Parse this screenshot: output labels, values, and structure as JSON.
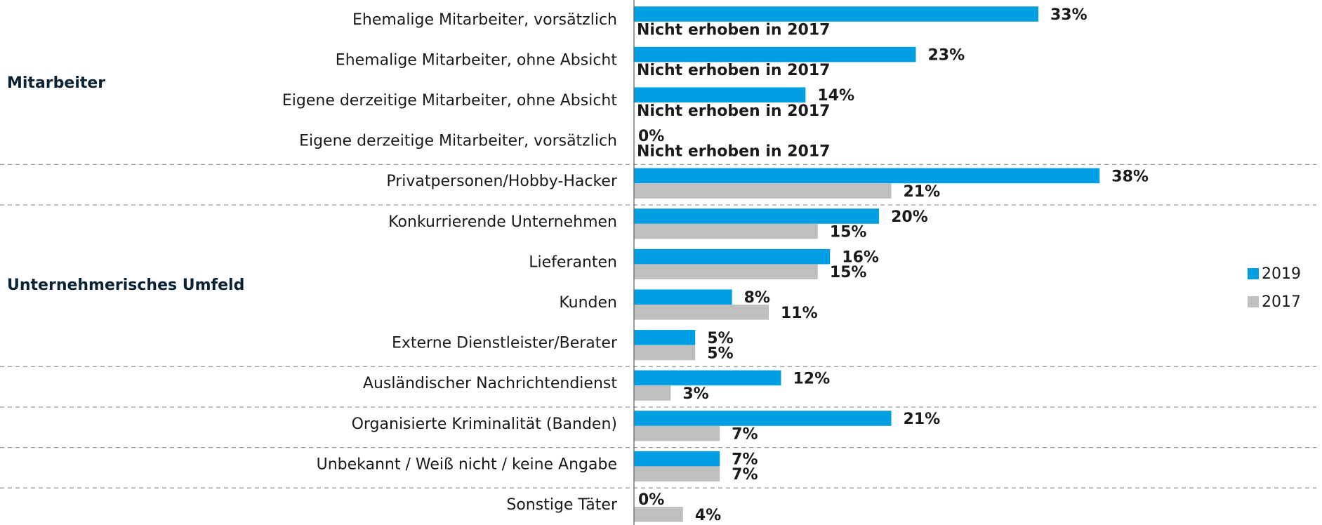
{
  "chart_data": {
    "type": "hbar",
    "categories": [
      "Ehemalige Mitarbeiter, vorsätzlich",
      "Ehemalige Mitarbeiter, ohne Absicht",
      "Eigene derzeitige Mitarbeiter, ohne Absicht",
      "Eigene derzeitige Mitarbeiter, vorsätzlich",
      "Privatpersonen/Hobby-Hacker",
      "Konkurrierende Unternehmen",
      "Lieferanten",
      "Kunden",
      "Externe Dienstleister/Berater",
      "Ausländischer Nachrichtendienst",
      "Organisierte Kriminalität (Banden)",
      "Unbekannt / Weiß nicht / keine Angabe",
      "Sonstige Täter"
    ],
    "series": [
      {
        "name": "2019",
        "color": "#009fe3",
        "values": [
          33,
          23,
          14,
          0,
          38,
          20,
          16,
          8,
          5,
          12,
          21,
          7,
          0
        ],
        "value_labels": [
          "33%",
          "23%",
          "14%",
          "0%",
          "38%",
          "20%",
          "16%",
          "8%",
          "5%",
          "12%",
          "21%",
          "7%",
          "0%"
        ]
      },
      {
        "name": "2017",
        "color": "#bfbfbf",
        "values": [
          null,
          null,
          null,
          null,
          21,
          15,
          15,
          11,
          5,
          3,
          7,
          7,
          4
        ],
        "value_labels": [
          "Nicht erhoben in 2017",
          "Nicht erhoben in 2017",
          "Nicht erhoben in 2017",
          "Nicht erhoben in 2017",
          "21%",
          "15%",
          "15%",
          "11%",
          "5%",
          "3%",
          "7%",
          "7%",
          "4%"
        ]
      }
    ],
    "groups": [
      {
        "label": "Mitarbeiter"
      },
      {
        "label": "Unternehmerisches Umfeld"
      }
    ],
    "xlim": [
      0,
      55
    ],
    "legend": "right"
  }
}
